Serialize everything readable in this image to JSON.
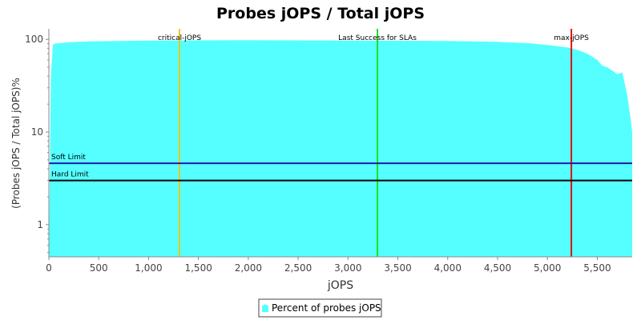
{
  "chart_data": {
    "type": "area",
    "title": "Probes jOPS / Total jOPS",
    "xlabel": "jOPS",
    "ylabel": "(Probes jOPS / Total jOPS)%",
    "yscale": "log",
    "xlim": [
      0,
      5850
    ],
    "ylim": [
      0.45,
      130
    ],
    "x_ticks": [
      0,
      500,
      1000,
      1500,
      2000,
      2500,
      3000,
      3500,
      4000,
      4500,
      5000,
      5500
    ],
    "x_tick_labels": [
      "0",
      "500",
      "1,000",
      "1,500",
      "2,000",
      "2,500",
      "3,000",
      "3,500",
      "4,000",
      "4,500",
      "5,000",
      "5,500"
    ],
    "y_ticks": [
      1,
      10,
      100
    ],
    "y_tick_labels": [
      "1",
      "10",
      "100"
    ],
    "series": [
      {
        "name": "Percent of probes jOPS",
        "color": "#55ffff",
        "x": [
          0,
          20,
          40,
          60,
          200,
          400,
          1000,
          2000,
          3000,
          4000,
          4500,
          4800,
          5000,
          5200,
          5300,
          5400,
          5500,
          5550,
          5600,
          5650,
          5700,
          5750,
          5800,
          5830,
          5850
        ],
        "values": [
          0.45,
          40,
          87,
          90,
          93,
          95,
          97,
          98,
          97,
          96,
          94,
          91,
          87,
          82,
          77,
          70,
          60,
          52,
          50,
          46,
          42,
          44,
          25,
          15,
          10
        ]
      }
    ],
    "markers": [
      {
        "label": "critical-jOPS",
        "x": 1310,
        "color": "#f2c416"
      },
      {
        "label": "Last Success for SLAs",
        "x": 3295,
        "color": "#1ee01e"
      },
      {
        "label": "max-jOPS",
        "x": 5240,
        "color": "#e01010"
      }
    ],
    "limits": [
      {
        "label": "Soft Limit",
        "y": 4.6,
        "color": "#1a1aa8"
      },
      {
        "label": "Hard Limit",
        "y": 3.0,
        "color": "#000000"
      }
    ],
    "grid": false,
    "legend_position": "bottom-center"
  }
}
